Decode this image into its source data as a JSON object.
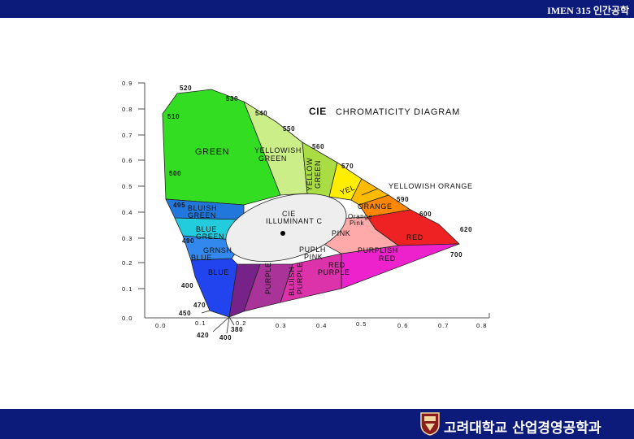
{
  "header": {
    "course": "IMEN 315 인간공학"
  },
  "footer": {
    "department": "고려대학교 산업경영공학과"
  },
  "diagram": {
    "title_bold": "CIE",
    "title": "CHROMATICITY DIAGRAM",
    "y_ticks": [
      "0.9",
      "0.8",
      "0.7",
      "0.6",
      "0.5",
      "0.4",
      "0.3",
      "0.2",
      "0.1",
      "0.0"
    ],
    "x_ticks": [
      "0.0",
      "0.1",
      "0.2",
      "0.3",
      "0.4",
      "0.5",
      "0.6",
      "0.7",
      "0.8"
    ],
    "wavelengths": [
      "520",
      "530",
      "540",
      "510",
      "550",
      "560",
      "570",
      "500",
      "590",
      "600",
      "495",
      "620",
      "490",
      "700",
      "400",
      "470",
      "450",
      "380",
      "420",
      "400"
    ],
    "regions": [
      {
        "lines": [
          "GREEN"
        ]
      },
      {
        "lines": [
          "YELLOWISH",
          "GREEN"
        ]
      },
      {
        "lines": [
          "YELLOW",
          "GREEN"
        ]
      },
      {
        "lines": [
          "YEL"
        ]
      },
      {
        "lines": [
          "YELLOWISH ORANGE"
        ]
      },
      {
        "lines": [
          "ORANGE"
        ]
      },
      {
        "lines": [
          "Orange",
          "Pink"
        ]
      },
      {
        "lines": [
          "RED"
        ]
      },
      {
        "lines": [
          "PINK"
        ]
      },
      {
        "lines": [
          "PURPLISH",
          "RED"
        ]
      },
      {
        "lines": [
          "RED",
          "PURPLE"
        ]
      },
      {
        "lines": [
          "BLUISH",
          "PURPLE"
        ]
      },
      {
        "lines": [
          "PURPLE"
        ]
      },
      {
        "lines": [
          "PUPLH",
          "PINK"
        ]
      },
      {
        "lines": [
          "BLUE"
        ]
      },
      {
        "lines": [
          "GRNSH",
          "BLUE"
        ]
      },
      {
        "lines": [
          "BLUE",
          "GREEN"
        ]
      },
      {
        "lines": [
          "BLUISH",
          "GREEN"
        ]
      },
      {
        "lines": [
          "CIE",
          "ILLUMINANT C"
        ]
      }
    ]
  }
}
